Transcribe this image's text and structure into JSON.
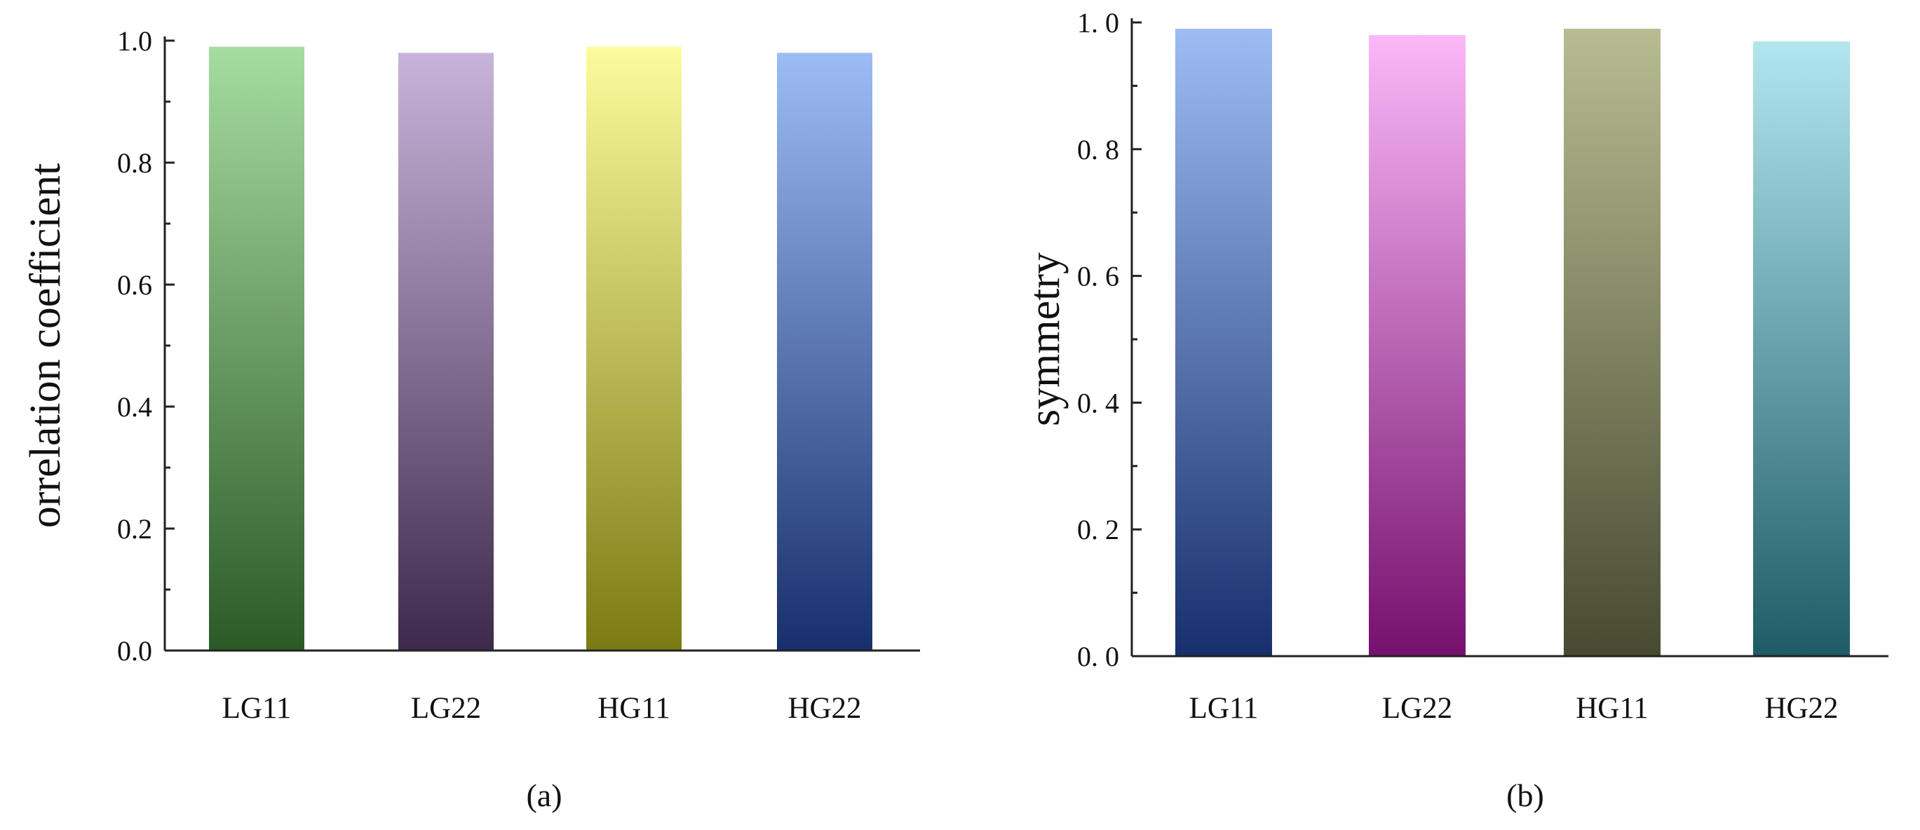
{
  "chart_data": [
    {
      "type": "bar",
      "panel_label": "(a)",
      "title": "",
      "xlabel": "",
      "ylabel": "orrelation coefficient",
      "categories": [
        "LG11",
        "LG22",
        "HG11",
        "HG22"
      ],
      "values": [
        0.99,
        0.98,
        0.99,
        0.98
      ],
      "ylim": [
        0,
        1.0
      ],
      "yticks": [
        0.0,
        0.2,
        0.4,
        0.6,
        0.8,
        1.0
      ],
      "ytick_labels": [
        "0.0",
        "0.2",
        "0.4",
        "0.6",
        "0.8",
        "1.0"
      ],
      "grid": false,
      "bar_colors": [
        {
          "top": "#A6DCA0",
          "bottom": "#2B5A27"
        },
        {
          "top": "#C8B4DA",
          "bottom": "#3D2A4A"
        },
        {
          "top": "#FCFC9E",
          "bottom": "#7C7A12"
        },
        {
          "top": "#9DBCF4",
          "bottom": "#172F6C"
        }
      ]
    },
    {
      "type": "bar",
      "panel_label": "(b)",
      "title": "",
      "xlabel": "",
      "ylabel": "symmetry",
      "categories": [
        "LG11",
        "LG22",
        "HG11",
        "HG22"
      ],
      "values": [
        0.99,
        0.98,
        0.99,
        0.97
      ],
      "ylim": [
        0,
        1.0
      ],
      "yticks": [
        0.0,
        0.2,
        0.4,
        0.6,
        0.8,
        1.0
      ],
      "ytick_labels": [
        "0. 0",
        "0. 2",
        "0. 4",
        "0. 6",
        "0. 8",
        "1. 0"
      ],
      "grid": false,
      "bar_colors": [
        {
          "top": "#9DBCF4",
          "bottom": "#172F6C"
        },
        {
          "top": "#FBB8F8",
          "bottom": "#76106E"
        },
        {
          "top": "#B8BC92",
          "bottom": "#474A30"
        },
        {
          "top": "#B2E6EE",
          "bottom": "#1D5C66"
        }
      ]
    }
  ]
}
